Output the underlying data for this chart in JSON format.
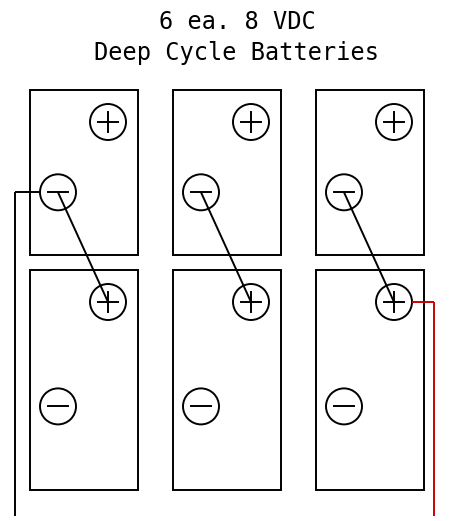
{
  "title_line1": "6 ea. 8 VDC",
  "title_line2": "Deep Cycle Batteries",
  "title_fontsize": 17,
  "title_font": "monospace",
  "bg_color": "#ffffff",
  "battery_color": "#000000",
  "wire_color": "#000000",
  "red_wire_color": "#cc0000",
  "fig_width": 4.74,
  "fig_height": 5.21,
  "lw": 1.4,
  "terminal_lw": 1.4,
  "wire_lw": 1.4
}
